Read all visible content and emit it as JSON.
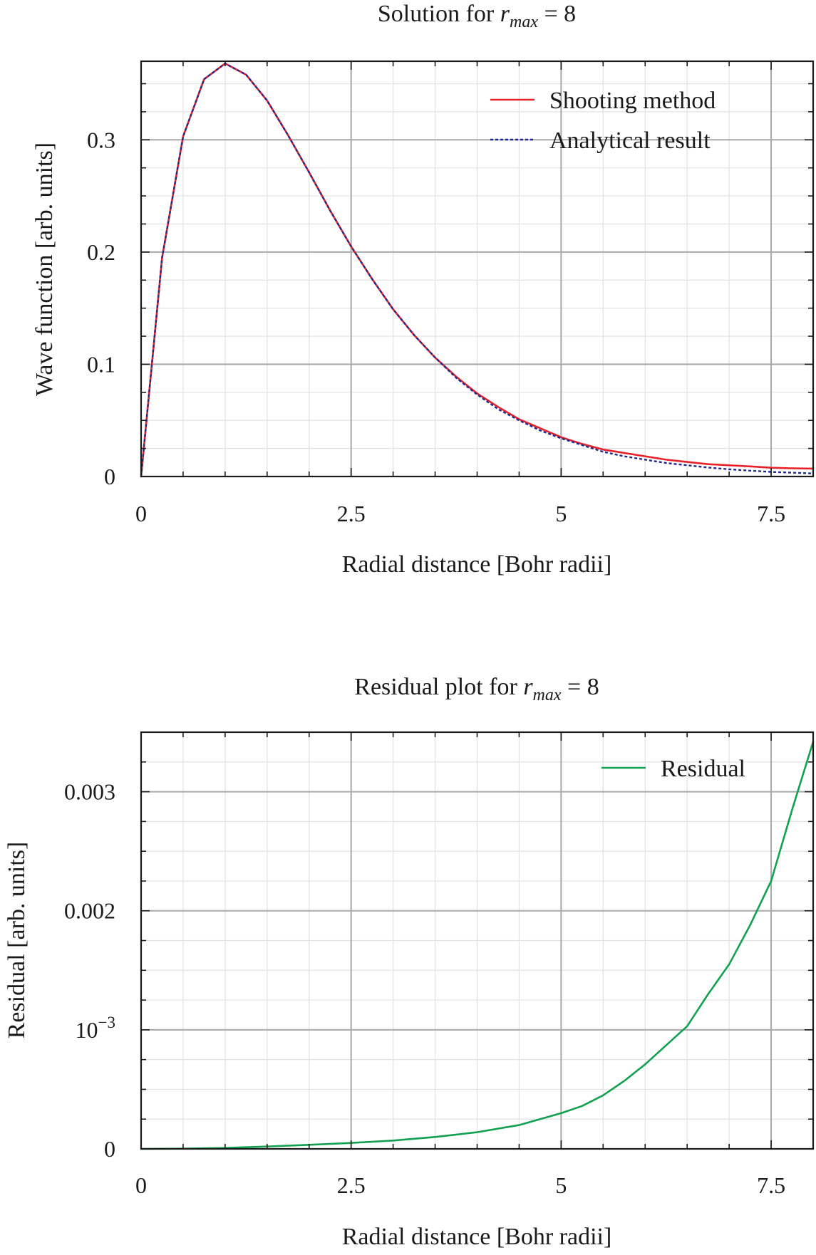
{
  "chart_data": [
    {
      "type": "line",
      "title_prefix": "Solution for ",
      "title_var": "r",
      "title_sub": "max",
      "title_suffix": " = 8",
      "xlabel": "Radial distance [Bohr radii]",
      "ylabel": "Wave function [arb. units]",
      "xlim": [
        0,
        8
      ],
      "ylim": [
        0,
        0.37
      ],
      "xticks": [
        0,
        2.5,
        5,
        7.5
      ],
      "xtick_labels": [
        "0",
        "2.5",
        "5",
        "7.5"
      ],
      "yticks": [
        0,
        0.1,
        0.2,
        0.3
      ],
      "ytick_labels": [
        "0",
        "0.1",
        "0.2",
        "0.3"
      ],
      "grid": true,
      "legend_position": "top-right",
      "series": [
        {
          "name": "Shooting method",
          "color": "#e8202a",
          "dash": "solid",
          "x": [
            0,
            0.25,
            0.5,
            0.75,
            1.0,
            1.25,
            1.5,
            1.75,
            2.0,
            2.25,
            2.5,
            2.75,
            3.0,
            3.25,
            3.5,
            3.75,
            4.0,
            4.25,
            4.5,
            4.75,
            5.0,
            5.25,
            5.5,
            5.75,
            6.0,
            6.25,
            6.5,
            6.75,
            7.0,
            7.25,
            7.5,
            7.75,
            8.0
          ],
          "y": [
            0,
            0.195,
            0.303,
            0.354,
            0.368,
            0.358,
            0.335,
            0.304,
            0.271,
            0.237,
            0.205,
            0.176,
            0.149,
            0.126,
            0.106,
            0.089,
            0.074,
            0.062,
            0.051,
            0.043,
            0.035,
            0.029,
            0.024,
            0.021,
            0.018,
            0.015,
            0.013,
            0.011,
            0.01,
            0.009,
            0.0078,
            0.0073,
            0.007
          ]
        },
        {
          "name": "Analytical result",
          "color": "#1f2a8c",
          "dash": "dotted",
          "x": [
            0,
            0.25,
            0.5,
            0.75,
            1.0,
            1.25,
            1.5,
            1.75,
            2.0,
            2.25,
            2.5,
            2.75,
            3.0,
            3.25,
            3.5,
            3.75,
            4.0,
            4.25,
            4.5,
            4.75,
            5.0,
            5.25,
            5.5,
            5.75,
            6.0,
            6.25,
            6.5,
            6.75,
            7.0,
            7.25,
            7.5,
            7.75,
            8.0
          ],
          "y": [
            0,
            0.195,
            0.303,
            0.354,
            0.368,
            0.358,
            0.335,
            0.304,
            0.271,
            0.237,
            0.205,
            0.176,
            0.149,
            0.126,
            0.106,
            0.088,
            0.073,
            0.06,
            0.05,
            0.041,
            0.034,
            0.028,
            0.022,
            0.018,
            0.015,
            0.012,
            0.01,
            0.008,
            0.0064,
            0.0052,
            0.0041,
            0.0034,
            0.0027
          ]
        }
      ]
    },
    {
      "type": "line",
      "title_prefix": "Residual plot for ",
      "title_var": "r",
      "title_sub": "max",
      "title_suffix": " = 8",
      "xlabel": "Radial distance [Bohr radii]",
      "ylabel": "Residual [arb. units]",
      "xlim": [
        0,
        8
      ],
      "ylim": [
        0,
        0.0035
      ],
      "xticks": [
        0,
        2.5,
        5,
        7.5
      ],
      "xtick_labels": [
        "0",
        "2.5",
        "5",
        "7.5"
      ],
      "yticks": [
        0,
        0.001,
        0.002,
        0.003
      ],
      "ytick_labels": [
        "0",
        "10^-3",
        "0.002",
        "0.003"
      ],
      "grid": true,
      "legend_position": "top-right",
      "series": [
        {
          "name": "Residual",
          "color": "#12a150",
          "dash": "solid",
          "x": [
            0,
            0.5,
            1.0,
            1.5,
            2.0,
            2.5,
            3.0,
            3.5,
            4.0,
            4.5,
            5.0,
            5.25,
            5.5,
            5.75,
            6.0,
            6.25,
            6.5,
            6.75,
            7.0,
            7.25,
            7.5,
            7.75,
            8.0
          ],
          "y": [
            0,
            2e-06,
            8e-06,
            2e-05,
            3.4e-05,
            5e-05,
            7e-05,
            0.0001,
            0.00014,
            0.0002,
            0.0003,
            0.00036,
            0.00045,
            0.00057,
            0.00071,
            0.00087,
            0.00103,
            0.0013,
            0.00155,
            0.00188,
            0.00225,
            0.00285,
            0.00342
          ]
        }
      ]
    }
  ]
}
